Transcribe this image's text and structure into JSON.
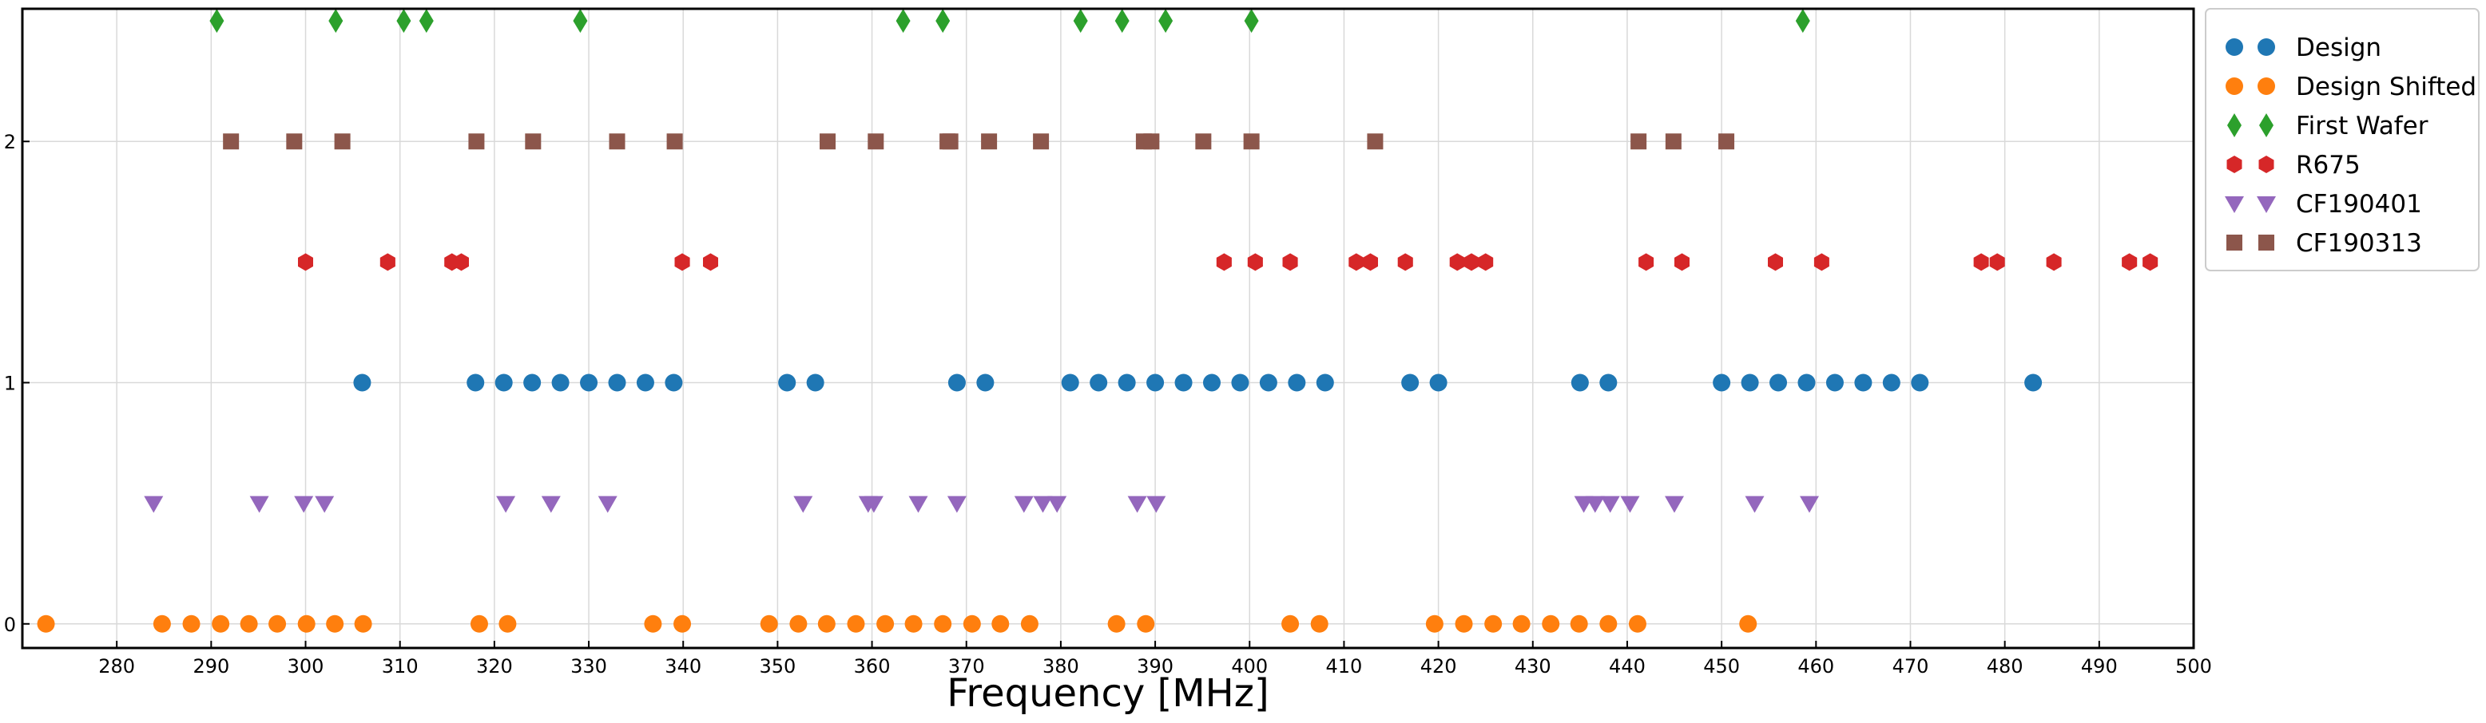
{
  "chart_data": {
    "type": "scatter",
    "title": "",
    "xlabel": "Frequency [MHz]",
    "ylabel": "",
    "xlim": [
      270,
      500
    ],
    "ylim": [
      -0.1,
      2.55
    ],
    "xticks": [
      280,
      290,
      300,
      310,
      320,
      330,
      340,
      350,
      360,
      370,
      380,
      390,
      400,
      410,
      420,
      430,
      440,
      450,
      460,
      470,
      480,
      490,
      500
    ],
    "yticks": [
      0,
      1,
      2
    ],
    "grid": true,
    "legend_position": "outside-right-top",
    "series": [
      {
        "name": "Design",
        "marker": "circle",
        "color": "#1f77b4",
        "y_level": 1,
        "x": [
          306,
          318,
          321,
          324,
          327,
          330,
          333,
          336,
          339,
          351,
          354,
          369,
          372,
          381,
          384,
          387,
          390,
          393,
          396,
          399,
          402,
          405,
          408,
          417,
          420,
          435,
          438,
          450,
          453,
          456,
          459,
          462,
          465,
          468,
          471,
          483
        ]
      },
      {
        "name": "Design Shifted",
        "marker": "circle",
        "color": "#ff7f0e",
        "y_level": 0,
        "x": [
          272.5,
          284.8,
          287.9,
          291,
          294,
          297,
          300.1,
          303.1,
          306.1,
          318.4,
          321.4,
          336.8,
          339.9,
          349.1,
          352.2,
          355.2,
          358.3,
          361.4,
          364.4,
          367.5,
          370.6,
          373.6,
          376.7,
          385.9,
          389,
          404.3,
          407.4,
          419.6,
          422.7,
          425.8,
          428.8,
          431.9,
          434.9,
          438,
          441.1,
          452.8
        ]
      },
      {
        "name": "First Wafer",
        "marker": "diamond",
        "color": "#2ca02c",
        "y_level": 2.5,
        "x": [
          290.6,
          303.2,
          310.4,
          312.8,
          329.1,
          363.3,
          367.5,
          382.1,
          386.5,
          391.1,
          400.2,
          458.6
        ]
      },
      {
        "name": "R675",
        "marker": "hexagon",
        "color": "#d62728",
        "y_level": 1.5,
        "x": [
          300,
          308.7,
          315.5,
          316.5,
          339.9,
          342.9,
          397.3,
          400.6,
          404.3,
          411.3,
          412.8,
          416.5,
          422,
          423.5,
          425,
          442,
          445.8,
          455.7,
          460.6,
          477.5,
          479.2,
          485.2,
          493.2,
          495.4
        ]
      },
      {
        "name": "CF190401",
        "marker": "triangle-down",
        "color": "#9467bd",
        "y_level": 0.5,
        "x": [
          283.9,
          295.1,
          299.8,
          302,
          321.2,
          326,
          332,
          352.7,
          359.6,
          360.2,
          364.9,
          369,
          376.1,
          378.1,
          379.6,
          388.1,
          390.1,
          435.4,
          436.6,
          438.2,
          440.3,
          445,
          453.5,
          459.3
        ]
      },
      {
        "name": "CF190313",
        "marker": "square",
        "color": "#8c564b",
        "y_level": 2,
        "x": [
          292.1,
          298.8,
          303.9,
          318.1,
          324.1,
          333,
          339.1,
          355.3,
          360.4,
          368,
          368.3,
          372.4,
          377.9,
          388.8,
          389.6,
          395.1,
          400.2,
          413.3,
          441.2,
          444.9,
          450.5
        ]
      }
    ]
  }
}
